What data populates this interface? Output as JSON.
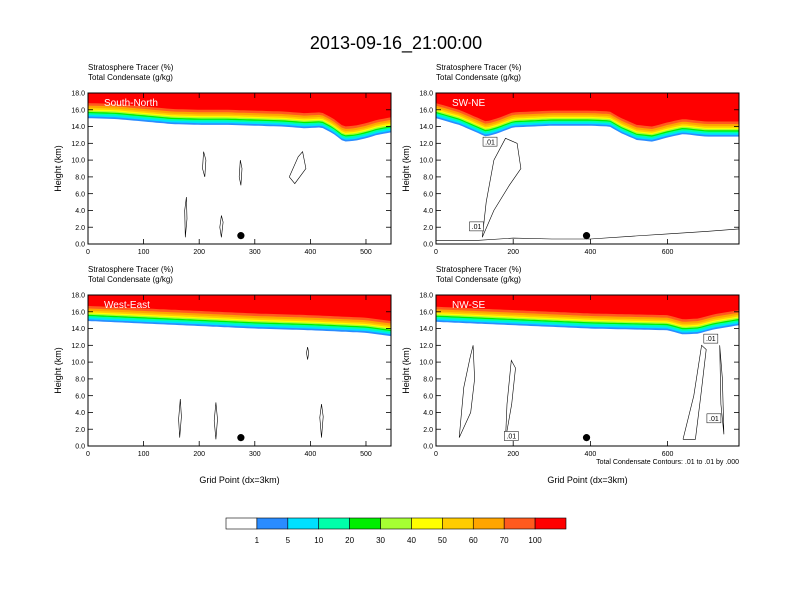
{
  "chart_data": {
    "type": "heatmap",
    "title": "2013-09-16_21:00:00",
    "fill_field": {
      "name": "Stratosphere Tracer",
      "units": "(%)"
    },
    "contour_field": {
      "name": "Total Condensate",
      "units": "(g/kg)"
    },
    "contour_info": "Total Condensate Contours: .01 to .01 by .000",
    "ylabel": "Height (km)",
    "xlabel": "Grid Point (dx=3km)",
    "ylim": [
      0,
      18
    ],
    "yticks": [
      "0.0",
      "2.0",
      "4.0",
      "6.0",
      "8.0",
      "10.0",
      "12.0",
      "14.0",
      "16.0",
      "18.0"
    ],
    "colorbar": {
      "colors": [
        "#ffffff",
        "#2a8cff",
        "#00e0ff",
        "#00ffaa",
        "#00ee00",
        "#a6ff33",
        "#ffff00",
        "#ffcc00",
        "#ffa500",
        "#ff5a1e",
        "#ff0000"
      ],
      "labels": [
        "1",
        "5",
        "10",
        "20",
        "30",
        "40",
        "50",
        "60",
        "70",
        "100"
      ]
    },
    "panels": [
      {
        "name": "South-North",
        "xlim": [
          0,
          545
        ],
        "xticks": [
          "0",
          "100",
          "200",
          "300",
          "400",
          "500"
        ],
        "show_xlabel": false,
        "marker": {
          "x": 275,
          "y": 1.0
        },
        "tropopause_base": [
          [
            0,
            15.0
          ],
          [
            50,
            14.9
          ],
          [
            100,
            14.6
          ],
          [
            150,
            14.3
          ],
          [
            200,
            14.2
          ],
          [
            250,
            14.2
          ],
          [
            300,
            14.1
          ],
          [
            350,
            14.0
          ],
          [
            390,
            13.8
          ],
          [
            420,
            13.9
          ],
          [
            440,
            13.2
          ],
          [
            460,
            12.2
          ],
          [
            480,
            12.3
          ],
          [
            500,
            12.6
          ],
          [
            520,
            13.0
          ],
          [
            545,
            13.3
          ]
        ],
        "contours": [
          [
            [
              210,
              8
            ],
            [
              212,
              10
            ],
            [
              208,
              11
            ],
            [
              206,
              9
            ],
            [
              210,
              8
            ]
          ],
          [
            [
              275,
              7
            ],
            [
              277,
              9
            ],
            [
              274,
              10
            ],
            [
              272,
              8
            ],
            [
              275,
              7
            ]
          ],
          [
            [
              175,
              0.8
            ],
            [
              178,
              3
            ],
            [
              177,
              5.6
            ],
            [
              174,
              4
            ],
            [
              175,
              0.8
            ]
          ],
          [
            [
              240,
              0.8
            ],
            [
              243,
              2.6
            ],
            [
              240,
              3.4
            ],
            [
              237,
              2
            ],
            [
              240,
              0.8
            ]
          ],
          [
            [
              362,
              8
            ],
            [
              378,
              10.4
            ],
            [
              386,
              11
            ],
            [
              392,
              9
            ],
            [
              372,
              7.2
            ],
            [
              362,
              8
            ]
          ]
        ],
        "contour_labels": []
      },
      {
        "name": "SW-NE",
        "xlim": [
          0,
          785
        ],
        "xticks": [
          "0",
          "200",
          "400",
          "600"
        ],
        "show_xlabel": false,
        "marker": {
          "x": 390,
          "y": 1.0
        },
        "tropopause_base": [
          [
            0,
            15.0
          ],
          [
            60,
            14.2
          ],
          [
            100,
            13.4
          ],
          [
            130,
            12.8
          ],
          [
            160,
            13.2
          ],
          [
            200,
            13.9
          ],
          [
            300,
            14.1
          ],
          [
            400,
            14.1
          ],
          [
            450,
            14.0
          ],
          [
            480,
            13.2
          ],
          [
            520,
            12.4
          ],
          [
            560,
            12.2
          ],
          [
            600,
            12.7
          ],
          [
            640,
            13.1
          ],
          [
            700,
            12.8
          ],
          [
            740,
            12.8
          ],
          [
            785,
            12.8
          ]
        ],
        "contours": [
          [
            [
              120,
              0.8
            ],
            [
              150,
              4
            ],
            [
              190,
              7
            ],
            [
              220,
              9
            ],
            [
              210,
              12
            ],
            [
              180,
              12.6
            ],
            [
              150,
              10
            ],
            [
              130,
              5
            ],
            [
              120,
              0.8
            ]
          ],
          [
            [
              0,
              0.4
            ],
            [
              100,
              0.4
            ],
            [
              200,
              0.7
            ],
            [
              300,
              0.6
            ],
            [
              400,
              0.6
            ],
            [
              500,
              0.9
            ],
            [
              600,
              1.2
            ],
            [
              700,
              1.5
            ],
            [
              785,
              1.8
            ]
          ]
        ],
        "contour_labels": [
          {
            "text": ".01",
            "x": 140,
            "y": 12.2
          },
          {
            "text": ".01",
            "x": 105,
            "y": 2.1
          }
        ]
      },
      {
        "name": "West-East",
        "xlim": [
          0,
          545
        ],
        "xticks": [
          "0",
          "100",
          "200",
          "300",
          "400",
          "500"
        ],
        "show_xlabel": true,
        "marker": {
          "x": 275,
          "y": 1.0
        },
        "tropopause_base": [
          [
            0,
            14.9
          ],
          [
            100,
            14.6
          ],
          [
            200,
            14.3
          ],
          [
            300,
            14.0
          ],
          [
            400,
            13.8
          ],
          [
            500,
            13.5
          ],
          [
            545,
            13.1
          ]
        ],
        "contours": [
          [
            [
              165,
              1.0
            ],
            [
              168,
              3.5
            ],
            [
              166,
              5.6
            ],
            [
              163,
              3.2
            ],
            [
              165,
              1.0
            ]
          ],
          [
            [
              230,
              0.8
            ],
            [
              233,
              3.2
            ],
            [
              230,
              5.2
            ],
            [
              227,
              3
            ],
            [
              230,
              0.8
            ]
          ],
          [
            [
              395,
              10.3
            ],
            [
              397,
              11.1
            ],
            [
              395,
              11.8
            ],
            [
              393,
              11.1
            ],
            [
              395,
              10.3
            ]
          ],
          [
            [
              420,
              1.0
            ],
            [
              423,
              3.5
            ],
            [
              420,
              5.0
            ],
            [
              417,
              3.4
            ],
            [
              420,
              1.0
            ]
          ]
        ],
        "contour_labels": []
      },
      {
        "name": "NW-SE",
        "xlim": [
          0,
          785
        ],
        "xticks": [
          "0",
          "200",
          "400",
          "600"
        ],
        "show_xlabel": true,
        "marker": {
          "x": 390,
          "y": 1.0
        },
        "tropopause_base": [
          [
            0,
            14.8
          ],
          [
            100,
            14.6
          ],
          [
            200,
            14.4
          ],
          [
            300,
            14.2
          ],
          [
            400,
            14.0
          ],
          [
            500,
            13.9
          ],
          [
            600,
            13.8
          ],
          [
            640,
            13.3
          ],
          [
            680,
            13.4
          ],
          [
            720,
            13.9
          ],
          [
            785,
            14.4
          ]
        ],
        "contours": [
          [
            [
              60,
              1.0
            ],
            [
              90,
              4
            ],
            [
              100,
              8
            ],
            [
              96,
              12
            ],
            [
              88,
              10.5
            ],
            [
              72,
              7
            ],
            [
              60,
              1.0
            ]
          ],
          [
            [
              180,
              0.8
            ],
            [
              196,
              5
            ],
            [
              206,
              9.3
            ],
            [
              195,
              10.2
            ],
            [
              184,
              5
            ],
            [
              180,
              0.8
            ]
          ],
          [
            [
              640,
              0.8
            ],
            [
              668,
              6
            ],
            [
              688,
              12
            ],
            [
              700,
              11.5
            ],
            [
              686,
              6
            ],
            [
              672,
              0.8
            ],
            [
              640,
              0.8
            ]
          ],
          [
            [
              735,
              12
            ],
            [
              742,
              8
            ],
            [
              746,
              1.4
            ],
            [
              738,
              5
            ],
            [
              735,
              12
            ]
          ]
        ],
        "contour_labels": [
          {
            "text": ".01",
            "x": 195,
            "y": 1.2
          },
          {
            "text": ".01",
            "x": 720,
            "y": 3.3
          },
          {
            "text": ".01",
            "x": 712,
            "y": 12.8
          }
        ]
      }
    ]
  }
}
